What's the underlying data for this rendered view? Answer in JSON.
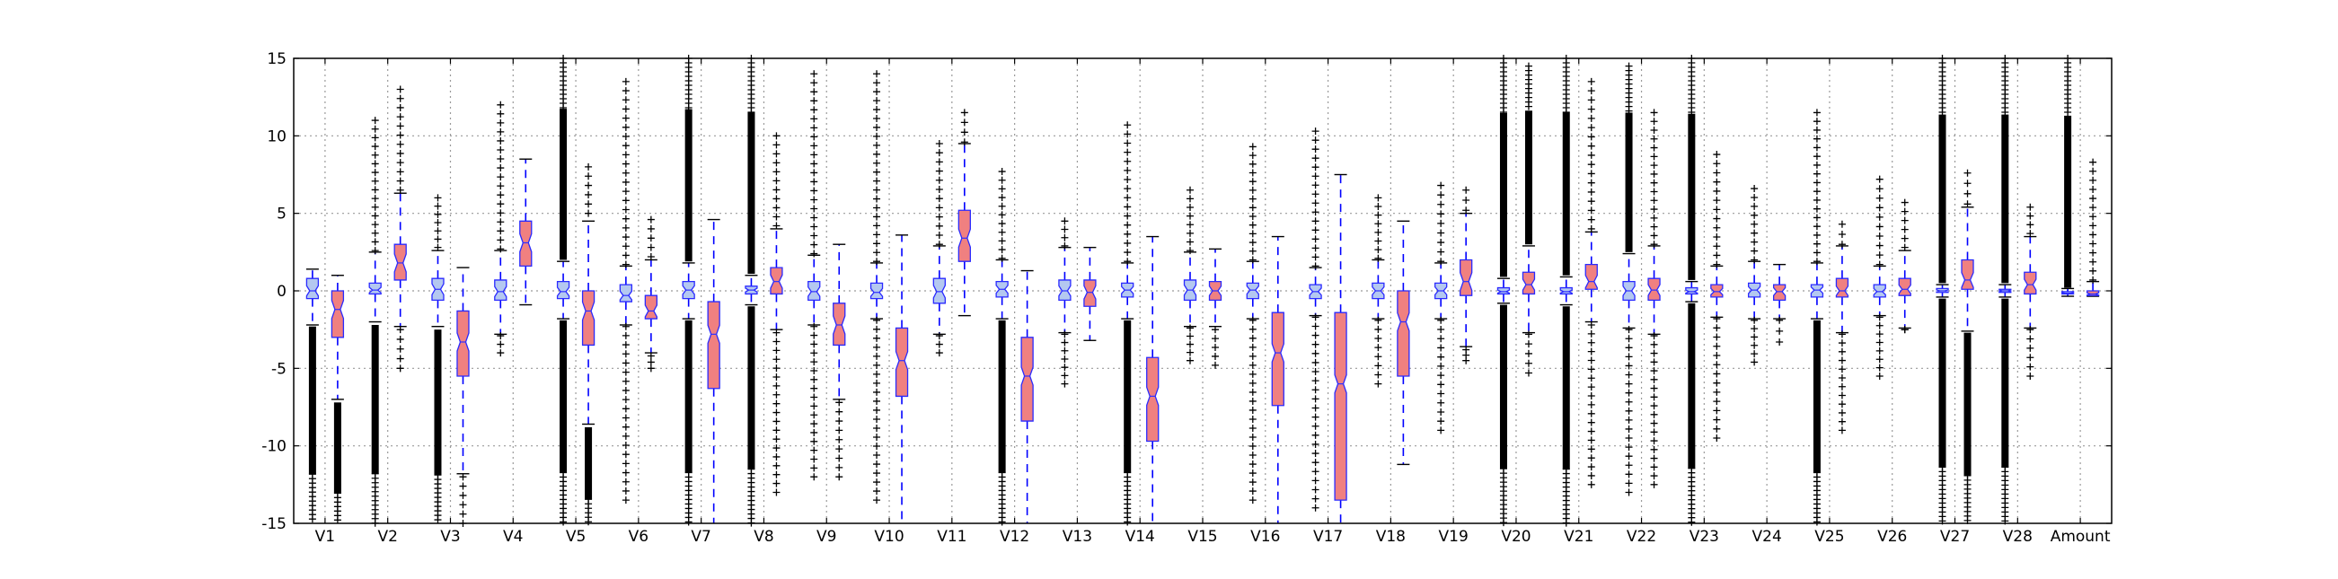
{
  "chart_data": {
    "type": "box",
    "title": "",
    "xlabel": "",
    "ylabel": "",
    "ylim": [
      -15,
      15
    ],
    "yticks": [
      -15,
      -10,
      -5,
      0,
      5,
      10,
      15
    ],
    "grid": true,
    "notched": true,
    "colors": {
      "first_box": "#b4c8f0",
      "second_box": "#f08080",
      "box_edge": "#2a2aff",
      "whisker": "#0000ff",
      "flier": "#000000"
    },
    "categories": [
      {
        "name": "V1",
        "a": {
          "q1": -0.5,
          "median": 0.0,
          "q3": 0.8,
          "whislo": -2.2,
          "whishi": 1.4,
          "fliers_low": [
            -15,
            -2.3
          ],
          "fliers_high": []
        },
        "b": {
          "q1": -3.0,
          "median": -1.2,
          "q3": 0.0,
          "whislo": -7.0,
          "whishi": 1.0,
          "fliers_low": [
            -15,
            -7.2
          ],
          "fliers_high": []
        }
      },
      {
        "name": "V2",
        "a": {
          "q1": -0.2,
          "median": 0.05,
          "q3": 0.5,
          "whislo": -2.0,
          "whishi": 2.5,
          "fliers_low": [
            -15,
            -2.2
          ],
          "fliers_high": [
            2.6,
            7.0,
            9.0,
            11.0
          ]
        },
        "b": {
          "q1": 0.7,
          "median": 1.8,
          "q3": 3.0,
          "whislo": -2.3,
          "whishi": 6.3,
          "fliers_low": [
            -5.0,
            -2.5
          ],
          "fliers_high": [
            6.5,
            10.0,
            11.5,
            13.0
          ]
        }
      },
      {
        "name": "V3",
        "a": {
          "q1": -0.6,
          "median": 0.1,
          "q3": 0.8,
          "whislo": -2.3,
          "whishi": 2.6,
          "fliers_low": [
            -15,
            -2.5
          ],
          "fliers_high": [
            2.8,
            6.0
          ]
        },
        "b": {
          "q1": -5.5,
          "median": -3.3,
          "q3": -1.3,
          "whislo": -11.8,
          "whishi": 1.5,
          "fliers_low": [
            -15,
            -12
          ]
        },
        "fliers_high": []
      },
      {
        "name": "V4",
        "a": {
          "q1": -0.6,
          "median": -0.05,
          "q3": 0.7,
          "whislo": -2.8,
          "whishi": 2.6,
          "fliers_low": [
            -4.0,
            -2.9
          ],
          "fliers_high": [
            2.7,
            9.0,
            12.0
          ]
        },
        "b": {
          "q1": 1.6,
          "median": 3.1,
          "q3": 4.5,
          "whislo": -0.9,
          "whishi": 8.5,
          "fliers_low": [],
          "fliers_high": []
        }
      },
      {
        "name": "V5",
        "a": {
          "q1": -0.5,
          "median": -0.05,
          "q3": 0.6,
          "whislo": -1.8,
          "whishi": 1.9,
          "fliers_low": [
            -15,
            -1.9
          ],
          "fliers_high": [
            2.0,
            15
          ]
        },
        "b": {
          "q1": -3.5,
          "median": -1.3,
          "q3": 0.0,
          "whislo": -8.6,
          "whishi": 4.5,
          "fliers_low": [
            -15,
            -8.8
          ],
          "fliers_high": [
            5.0,
            8.0
          ]
        }
      },
      {
        "name": "V6",
        "a": {
          "q1": -0.7,
          "median": -0.3,
          "q3": 0.4,
          "whislo": -2.2,
          "whishi": 1.6,
          "fliers_low": [
            -13.5,
            -2.3
          ],
          "fliers_high": [
            1.7,
            13.5
          ]
        },
        "b": {
          "q1": -1.8,
          "median": -1.3,
          "q3": -0.3,
          "whislo": -4.0,
          "whishi": 2.0,
          "fliers_low": [
            -5.0,
            -4.2
          ],
          "fliers_high": [
            2.2,
            4.6
          ]
        }
      },
      {
        "name": "V7",
        "a": {
          "q1": -0.5,
          "median": 0.05,
          "q3": 0.6,
          "whislo": -1.8,
          "whishi": 1.8,
          "fliers_low": [
            -15,
            -1.9
          ],
          "fliers_high": [
            1.9,
            15
          ]
        },
        "b": {
          "q1": -6.3,
          "median": -2.8,
          "q3": -0.7,
          "whislo": -15,
          "whishi": 4.6,
          "fliers_low": [],
          "fliers_high": []
        }
      },
      {
        "name": "V8",
        "a": {
          "q1": -0.2,
          "median": 0.05,
          "q3": 0.3,
          "whislo": -0.9,
          "whishi": 1.0,
          "fliers_low": [
            -15,
            -1.0
          ],
          "fliers_high": [
            1.1,
            15
          ]
        },
        "b": {
          "q1": -0.2,
          "median": 0.6,
          "q3": 1.5,
          "whislo": -2.5,
          "whishi": 4.0,
          "fliers_low": [
            -13.0,
            -2.7
          ],
          "fliers_high": [
            4.2,
            10.0
          ]
        }
      },
      {
        "name": "V9",
        "a": {
          "q1": -0.6,
          "median": -0.05,
          "q3": 0.6,
          "whislo": -2.2,
          "whishi": 2.3,
          "fliers_low": [
            -12.0,
            -2.3
          ],
          "fliers_high": [
            2.4,
            14.0
          ]
        },
        "b": {
          "q1": -3.5,
          "median": -2.2,
          "q3": -0.8,
          "whislo": -7.0,
          "whishi": 3.0,
          "fliers_low": [
            -12.0,
            -7.2
          ],
          "fliers_high": []
        }
      },
      {
        "name": "V10",
        "a": {
          "q1": -0.5,
          "median": -0.1,
          "q3": 0.5,
          "whislo": -1.8,
          "whishi": 1.8,
          "fliers_low": [
            -13.5,
            -1.9
          ],
          "fliers_high": [
            1.9,
            14.0
          ]
        },
        "b": {
          "q1": -6.8,
          "median": -4.5,
          "q3": -2.4,
          "whislo": -15,
          "whishi": 3.6,
          "fliers_low": [],
          "fliers_high": []
        }
      },
      {
        "name": "V11",
        "a": {
          "q1": -0.8,
          "median": -0.05,
          "q3": 0.8,
          "whislo": -2.8,
          "whishi": 2.9,
          "fliers_low": [
            -4.0,
            -2.9
          ],
          "fliers_high": [
            3.0,
            9.5
          ]
        },
        "b": {
          "q1": 1.9,
          "median": 3.4,
          "q3": 5.2,
          "whislo": -1.6,
          "whishi": 9.5,
          "fliers_low": [],
          "fliers_high": [
            9.6,
            11.5
          ]
        }
      },
      {
        "name": "V12",
        "a": {
          "q1": -0.4,
          "median": 0.1,
          "q3": 0.6,
          "whislo": -1.8,
          "whishi": 2.0,
          "fliers_low": [
            -15,
            -1.9
          ],
          "fliers_high": [
            2.1,
            7.7
          ]
        },
        "b": {
          "q1": -8.4,
          "median": -5.5,
          "q3": -3.0,
          "whislo": -15,
          "whishi": 1.3,
          "fliers_low": [],
          "fliers_high": []
        }
      },
      {
        "name": "V13",
        "a": {
          "q1": -0.6,
          "median": 0.0,
          "q3": 0.7,
          "whislo": -2.7,
          "whishi": 2.8,
          "fliers_low": [
            -6.0,
            -2.8
          ],
          "fliers_high": [
            2.9,
            4.5
          ]
        },
        "b": {
          "q1": -1.0,
          "median": -0.1,
          "q3": 0.7,
          "whislo": -3.2,
          "whishi": 2.8,
          "fliers_low": [],
          "fliers_high": []
        }
      },
      {
        "name": "V14",
        "a": {
          "q1": -0.4,
          "median": 0.05,
          "q3": 0.5,
          "whislo": -1.8,
          "whishi": 1.8,
          "fliers_low": [
            -15,
            -1.9
          ],
          "fliers_high": [
            1.9,
            10.7
          ]
        },
        "b": {
          "q1": -9.7,
          "median": -6.8,
          "q3": -4.3,
          "whislo": -15,
          "whishi": 3.5,
          "fliers_low": [],
          "fliers_high": []
        }
      },
      {
        "name": "V15",
        "a": {
          "q1": -0.6,
          "median": 0.05,
          "q3": 0.7,
          "whislo": -2.3,
          "whishi": 2.5,
          "fliers_low": [
            -4.5,
            -2.4
          ],
          "fliers_high": [
            2.6,
            6.5
          ]
        },
        "b": {
          "q1": -0.6,
          "median": 0.0,
          "q3": 0.6,
          "whislo": -2.3,
          "whishi": 2.7,
          "fliers_low": [
            -4.8,
            -2.5
          ],
          "fliers_high": []
        }
      },
      {
        "name": "V16",
        "a": {
          "q1": -0.5,
          "median": 0.05,
          "q3": 0.5,
          "whislo": -1.8,
          "whishi": 1.9,
          "fliers_low": [
            -13.5,
            -1.9
          ],
          "fliers_high": [
            2.0,
            9.3
          ]
        },
        "b": {
          "q1": -7.4,
          "median": -4.0,
          "q3": -1.4,
          "whislo": -15,
          "whishi": 3.5,
          "fliers_low": [],
          "fliers_high": []
        }
      },
      {
        "name": "V17",
        "a": {
          "q1": -0.5,
          "median": -0.05,
          "q3": 0.4,
          "whislo": -1.6,
          "whishi": 1.5,
          "fliers_low": [
            -14.0,
            -1.7
          ],
          "fliers_high": [
            1.6,
            10.3
          ]
        },
        "b": {
          "q1": -13.5,
          "median": -6.0,
          "q3": -1.4,
          "whislo": -15,
          "whishi": 7.5,
          "fliers_low": [],
          "fliers_high": []
        }
      },
      {
        "name": "V18",
        "a": {
          "q1": -0.5,
          "median": 0.0,
          "q3": 0.5,
          "whislo": -1.8,
          "whishi": 2.0,
          "fliers_low": [
            -6.0,
            -1.9
          ],
          "fliers_high": [
            2.1,
            6.0
          ]
        },
        "b": {
          "q1": -5.5,
          "median": -2.0,
          "q3": 0.0,
          "whislo": -11.2,
          "whishi": 4.5,
          "fliers_low": [],
          "fliers_high": []
        }
      },
      {
        "name": "V19",
        "a": {
          "q1": -0.5,
          "median": 0.0,
          "q3": 0.5,
          "whislo": -1.8,
          "whishi": 1.8,
          "fliers_low": [
            -9.0,
            -1.9
          ],
          "fliers_high": [
            1.9,
            6.8
          ]
        },
        "b": {
          "q1": -0.3,
          "median": 0.6,
          "q3": 2.0,
          "whislo": -3.6,
          "whishi": 5.0,
          "fliers_low": [
            -4.5,
            -3.8
          ],
          "fliers_high": [
            5.2,
            6.5
          ]
        }
      },
      {
        "name": "V20",
        "a": {
          "q1": -0.2,
          "median": -0.05,
          "q3": 0.2,
          "whislo": -0.8,
          "whishi": 0.8,
          "fliers_low": [
            -15,
            -0.9
          ],
          "fliers_high": [
            0.9,
            15
          ]
        },
        "b": {
          "q1": -0.2,
          "median": 0.4,
          "q3": 1.2,
          "whislo": -2.7,
          "whishi": 2.9,
          "fliers_low": [
            -5.3,
            -2.8
          ],
          "fliers_high": [
            3.0,
            14.5
          ]
        }
      },
      {
        "name": "V21",
        "a": {
          "q1": -0.2,
          "median": -0.05,
          "q3": 0.2,
          "whislo": -0.9,
          "whishi": 0.9,
          "fliers_low": [
            -15,
            -1.0
          ],
          "fliers_high": [
            1.0,
            15
          ]
        },
        "b": {
          "q1": 0.1,
          "median": 0.6,
          "q3": 1.7,
          "whislo": -2.0,
          "whishi": 3.8,
          "fliers_low": [
            -12.5,
            -2.2
          ],
          "fliers_high": [
            4.0,
            13.5
          ]
        }
      },
      {
        "name": "V22",
        "a": {
          "q1": -0.6,
          "median": 0.0,
          "q3": 0.6,
          "whislo": -2.4,
          "whishi": 2.4,
          "fliers_low": [
            -13.0,
            -2.5
          ],
          "fliers_high": [
            2.5,
            14.5
          ]
        },
        "b": {
          "q1": -0.6,
          "median": 0.05,
          "q3": 0.8,
          "whislo": -2.8,
          "whishi": 2.9,
          "fliers_low": [
            -12.5,
            -2.9
          ],
          "fliers_high": [
            3.0,
            11.5
          ]
        }
      },
      {
        "name": "V23",
        "a": {
          "q1": -0.2,
          "median": -0.05,
          "q3": 0.2,
          "whislo": -0.7,
          "whishi": 0.6,
          "fliers_low": [
            -15,
            -0.8
          ],
          "fliers_high": [
            0.7,
            15
          ]
        },
        "b": {
          "q1": -0.4,
          "median": -0.05,
          "q3": 0.4,
          "whislo": -1.7,
          "whishi": 1.6,
          "fliers_low": [
            -9.5,
            -1.8
          ],
          "fliers_high": [
            1.7,
            8.8
          ]
        }
      },
      {
        "name": "V24",
        "a": {
          "q1": -0.4,
          "median": 0.05,
          "q3": 0.5,
          "whislo": -1.8,
          "whishi": 1.9,
          "fliers_low": [
            -4.6,
            -1.9
          ],
          "fliers_high": [
            2.0,
            6.6
          ]
        },
        "b": {
          "q1": -0.6,
          "median": -0.05,
          "q3": 0.4,
          "whislo": -1.8,
          "whishi": 1.7,
          "fliers_low": [
            -3.3,
            -1.9
          ],
          "fliers_high": []
        }
      },
      {
        "name": "V25",
        "a": {
          "q1": -0.4,
          "median": 0.05,
          "q3": 0.4,
          "whislo": -1.8,
          "whishi": 1.8,
          "fliers_low": [
            -15,
            -1.9
          ],
          "fliers_high": [
            1.9,
            11.5
          ]
        },
        "b": {
          "q1": -0.4,
          "median": 0.0,
          "q3": 0.8,
          "whislo": -2.7,
          "whishi": 2.9,
          "fliers_low": [
            -9.0,
            -2.8
          ],
          "fliers_high": [
            3.0,
            4.3
          ]
        }
      },
      {
        "name": "V26",
        "a": {
          "q1": -0.4,
          "median": -0.05,
          "q3": 0.4,
          "whislo": -1.6,
          "whishi": 1.6,
          "fliers_low": [
            -5.5,
            -1.7
          ],
          "fliers_high": [
            1.7,
            7.2
          ]
        },
        "b": {
          "q1": -0.3,
          "median": 0.1,
          "q3": 0.8,
          "whislo": -2.4,
          "whishi": 2.6,
          "fliers_low": [
            -2.5
          ],
          "fliers_high": [
            2.8,
            5.7
          ]
        }
      },
      {
        "name": "V27",
        "a": {
          "q1": -0.1,
          "median": 0.0,
          "q3": 0.15,
          "whislo": -0.4,
          "whishi": 0.4,
          "fliers_low": [
            -15,
            -0.5
          ],
          "fliers_high": [
            0.5,
            15
          ]
        },
        "b": {
          "q1": 0.1,
          "median": 0.7,
          "q3": 2.0,
          "whislo": -2.6,
          "whishi": 5.4,
          "fliers_low": [
            -15,
            -2.7
          ],
          "fliers_high": [
            5.6,
            7.6
          ]
        }
      },
      {
        "name": "V28",
        "a": {
          "q1": -0.1,
          "median": 0.0,
          "q3": 0.1,
          "whislo": -0.4,
          "whishi": 0.4,
          "fliers_low": [
            -15,
            -0.5
          ],
          "fliers_high": [
            0.5,
            15
          ]
        },
        "b": {
          "q1": -0.2,
          "median": 0.4,
          "q3": 1.2,
          "whislo": -2.4,
          "whishi": 3.5,
          "fliers_low": [
            -5.5,
            -2.5
          ],
          "fliers_high": [
            3.7,
            5.4
          ]
        }
      },
      {
        "name": "Amount",
        "a": {
          "q1": -0.2,
          "median": -0.15,
          "q3": -0.05,
          "whislo": -0.35,
          "whishi": 0.15,
          "fliers_low": [],
          "fliers_high": [
            0.2,
            15
          ]
        },
        "b": {
          "q1": -0.3,
          "median": -0.2,
          "q3": 0.0,
          "whislo": -0.35,
          "whishi": 0.6,
          "fliers_low": [],
          "fliers_high": [
            0.7,
            8.3
          ]
        }
      }
    ]
  }
}
